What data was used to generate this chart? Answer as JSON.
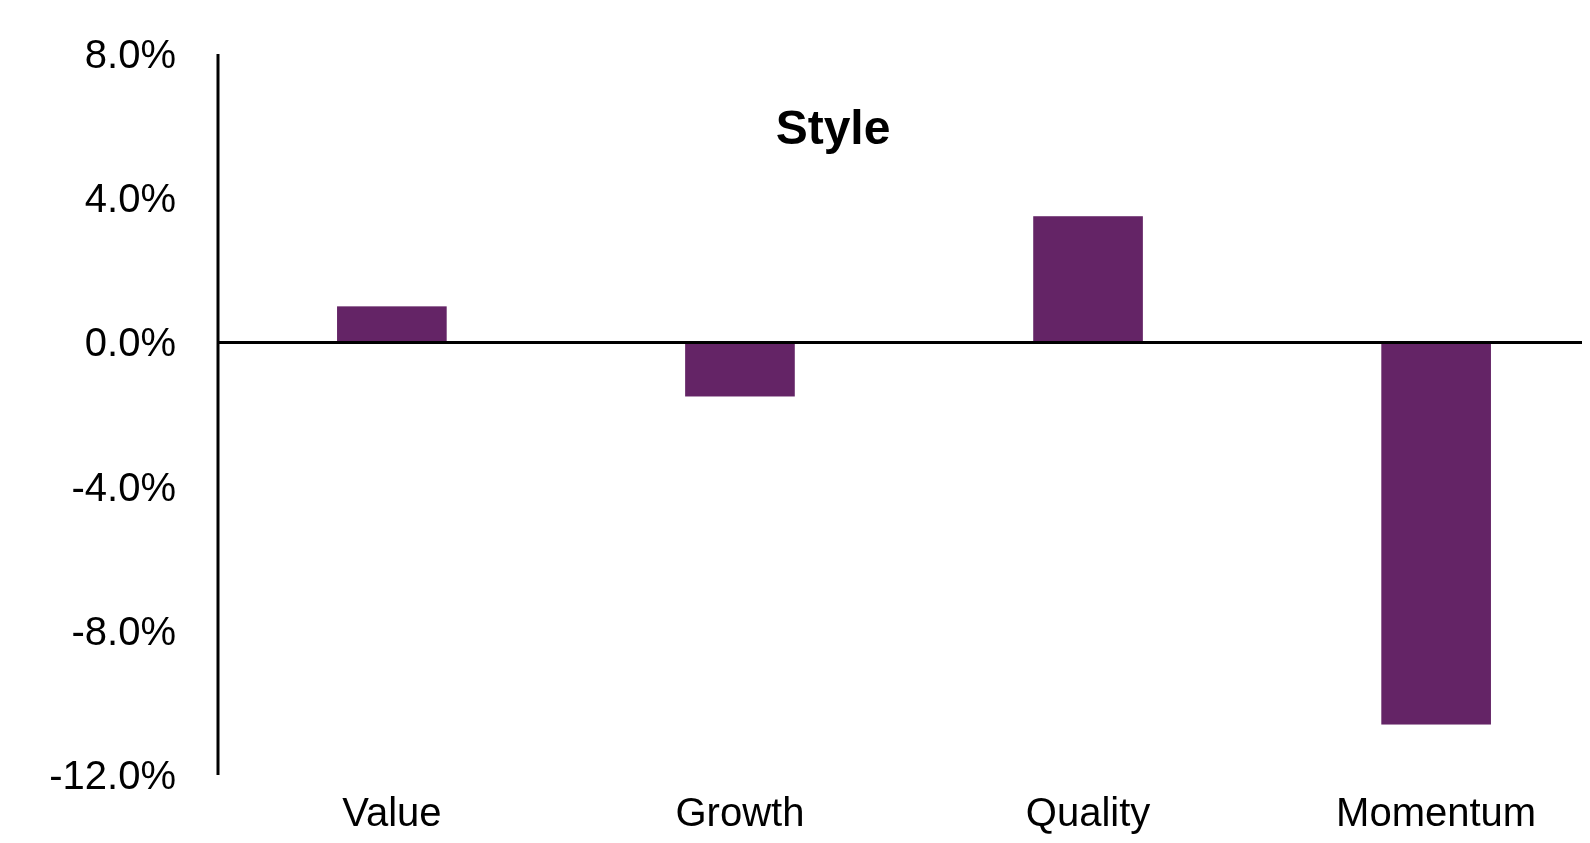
{
  "chart_data": {
    "type": "bar",
    "title": "Style",
    "categories": [
      "Value",
      "Growth",
      "Quality",
      "Momentum"
    ],
    "values": [
      1.0,
      -1.5,
      3.5,
      -10.6
    ],
    "color": "#642466",
    "ylim": [
      -12,
      8
    ],
    "yticks": [
      {
        "value": 8,
        "label": "8.0%"
      },
      {
        "value": 4,
        "label": "4.0%"
      },
      {
        "value": 0,
        "label": "0.0%"
      },
      {
        "value": -4,
        "label": "-4.0%"
      },
      {
        "value": -8,
        "label": "-8.0%"
      },
      {
        "value": -12,
        "label": "-12.0%"
      }
    ]
  }
}
